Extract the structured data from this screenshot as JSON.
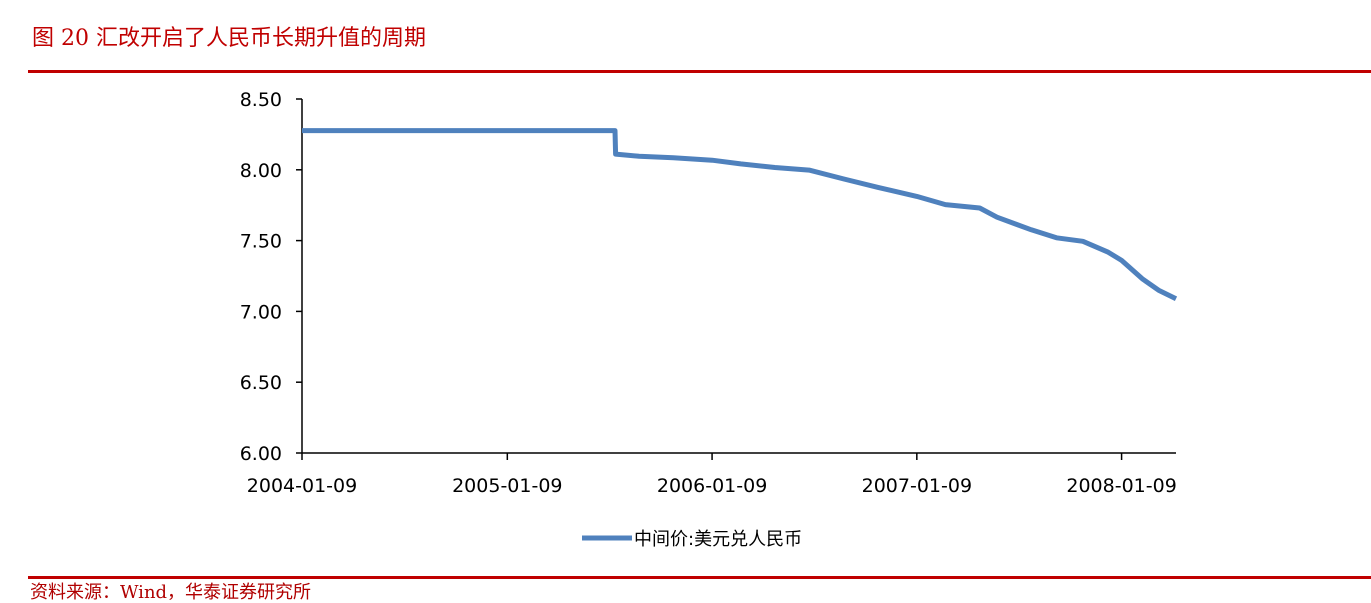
{
  "figure": {
    "title": "图 20   汇改开启了人民币长期升值的周期",
    "source": "资料来源：Wind，华泰证券研究所",
    "accent_color": "#c00000"
  },
  "chart_data": {
    "type": "line",
    "title": "",
    "xlabel": "",
    "ylabel": "",
    "ylim": [
      6.0,
      8.5
    ],
    "yticks": [
      "8.50",
      "8.00",
      "7.50",
      "7.00",
      "6.50",
      "6.00"
    ],
    "ytick_values": [
      8.5,
      8.0,
      7.5,
      7.0,
      6.5,
      6.0
    ],
    "xticks": [
      "2004-01-09",
      "2005-01-09",
      "2006-01-09",
      "2007-01-09",
      "2008-01-09"
    ],
    "xtick_values": [
      "2004-01-09",
      "2005-01-09",
      "2006-01-09",
      "2007-01-09",
      "2008-01-09"
    ],
    "xlim": [
      "2004-01-09",
      "2008-04-15"
    ],
    "grid": false,
    "legend": {
      "position": "bottom"
    },
    "series": [
      {
        "name": "中间价:美元兑人民币",
        "color": "#4f81bd",
        "x": [
          "2004-01-09",
          "2005-07-20",
          "2005-07-21",
          "2005-09-01",
          "2005-11-01",
          "2006-01-09",
          "2006-03-01",
          "2006-05-01",
          "2006-07-01",
          "2006-09-01",
          "2006-11-01",
          "2007-01-09",
          "2007-03-01",
          "2007-05-01",
          "2007-06-01",
          "2007-08-01",
          "2007-09-15",
          "2007-11-01",
          "2007-12-15",
          "2008-01-09",
          "2008-02-15",
          "2008-03-15",
          "2008-04-15"
        ],
        "y": [
          8.277,
          8.277,
          8.111,
          8.095,
          8.085,
          8.068,
          8.042,
          8.016,
          7.998,
          7.935,
          7.876,
          7.812,
          7.754,
          7.73,
          7.665,
          7.576,
          7.52,
          7.495,
          7.42,
          7.36,
          7.23,
          7.15,
          7.09
        ]
      }
    ]
  }
}
